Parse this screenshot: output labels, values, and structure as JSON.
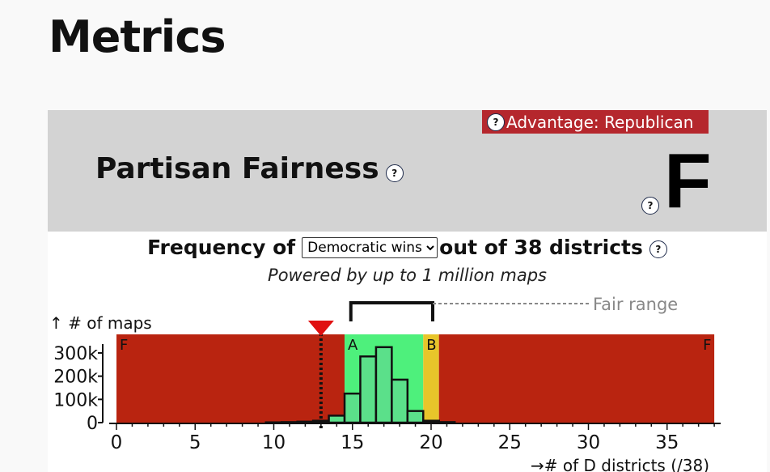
{
  "page": {
    "title": "Metrics"
  },
  "partisan_fairness": {
    "title": "Partisan Fairness",
    "advantage_label": "Advantage: Republican",
    "grade": "F",
    "help_glyph": "?"
  },
  "frequency": {
    "prefix": "Frequency of",
    "selected_option": "Democratic wins",
    "suffix": "out of 38 districts",
    "powered_by": "Powered by up to 1 million maps"
  },
  "chart_data": {
    "type": "bar",
    "ylabel": "↑ # of maps",
    "xlabel": "→# of D districts (/38)",
    "xlim": [
      0,
      38
    ],
    "ylim": [
      0,
      380000
    ],
    "x_ticks": [
      0,
      5,
      10,
      15,
      20,
      25,
      30,
      35
    ],
    "y_ticks": [
      {
        "value": 0,
        "label": "0"
      },
      {
        "value": 100000,
        "label": "100k"
      },
      {
        "value": 200000,
        "label": "200k"
      },
      {
        "value": 300000,
        "label": "300k"
      }
    ],
    "histogram": {
      "x": [
        10,
        11,
        12,
        13,
        14,
        15,
        16,
        17,
        18,
        19,
        20,
        21
      ],
      "values": [
        1000,
        2000,
        4000,
        8000,
        30000,
        125000,
        285000,
        325000,
        185000,
        50000,
        8000,
        2000
      ]
    },
    "grade_bands": [
      {
        "label": "F",
        "from": 0,
        "to": 14.5,
        "color": "#b92410"
      },
      {
        "label": "A",
        "from": 14.5,
        "to": 19.5,
        "color": "#4ef07c"
      },
      {
        "label": "B",
        "from": 19.5,
        "to": 20.5,
        "color": "#e8c52a"
      },
      {
        "label": "F",
        "from": 20.5,
        "to": 38,
        "color": "#b92410"
      }
    ],
    "fair_range": {
      "label": "Fair range",
      "from": 15,
      "to": 20
    },
    "current_plan": {
      "value": 13,
      "marker_color": "#e01010"
    },
    "colors": {
      "bar_fill": "#5be08a",
      "bar_stroke": "#111111"
    }
  }
}
